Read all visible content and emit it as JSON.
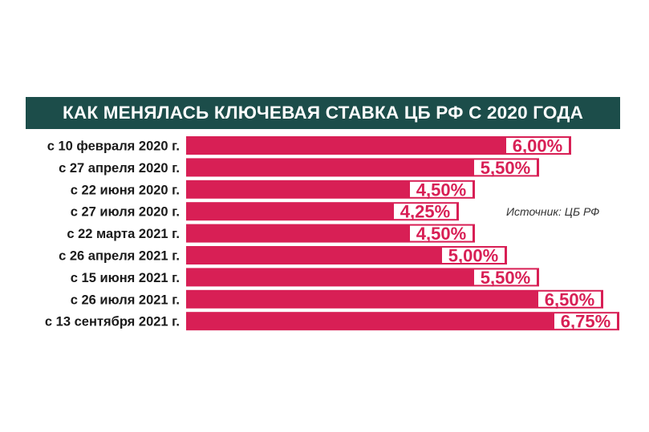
{
  "header": {
    "title": "КАК МЕНЯЛАСЬ КЛЮЧЕВАЯ СТАВКА ЦБ РФ С 2020 ГОДА"
  },
  "source": "Источник: ЦБ РФ",
  "colors": {
    "header_bg": "#1c4d4a",
    "bar": "#d81f55",
    "label_bg": "#ffffff",
    "text": "#1a1a1a"
  },
  "chart_data": {
    "type": "bar",
    "orientation": "horizontal",
    "title": "КАК МЕНЯЛАСЬ КЛЮЧЕВАЯ СТАВКА ЦБ РФ С 2020 ГОДА",
    "categories": [
      "с 10 февраля 2020 г.",
      "с 27 апреля 2020 г.",
      "с 22 июня 2020 г.",
      "с 27 июля 2020 г.",
      "с 22 марта 2021 г.",
      "с 26 апреля 2021 г.",
      "с 15 июня 2021 г.",
      "с 26 июля 2021 г.",
      "с 13 сентября 2021 г."
    ],
    "values": [
      6.0,
      5.5,
      4.5,
      4.25,
      4.5,
      5.0,
      5.5,
      6.5,
      6.75
    ],
    "value_labels": [
      "6,00%",
      "5,50%",
      "4,50%",
      "4,25%",
      "4,50%",
      "5,00%",
      "5,50%",
      "6,50%",
      "6,75%"
    ],
    "xlabel": "",
    "ylabel": "",
    "grid": false,
    "legend": "none"
  }
}
